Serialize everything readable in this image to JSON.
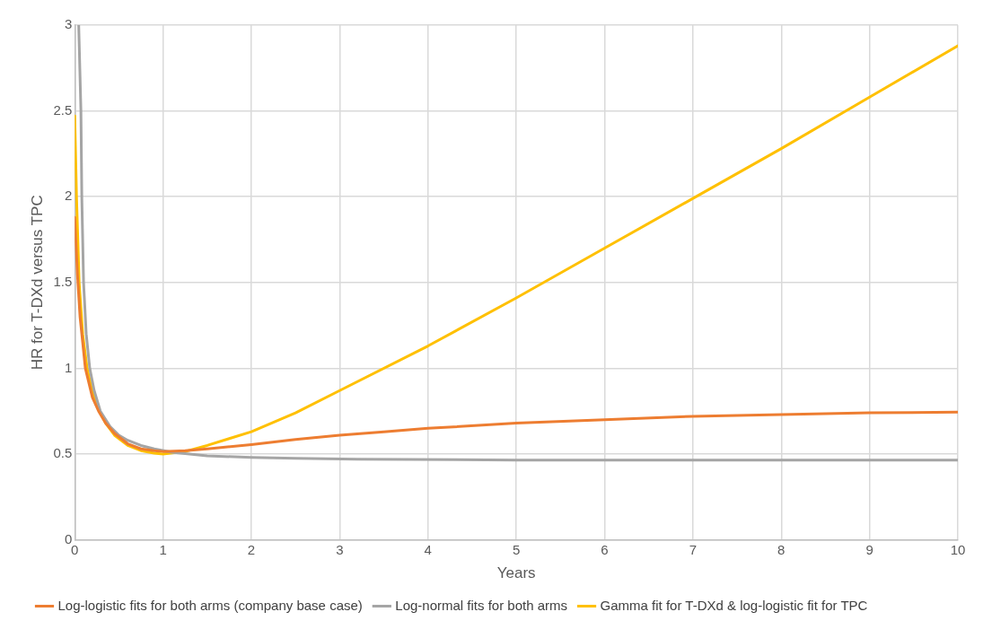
{
  "chart_data": {
    "type": "line",
    "xlabel": "Years",
    "ylabel": "HR for T-DXd versus TPC",
    "xlim": [
      0,
      10
    ],
    "ylim": [
      0,
      3
    ],
    "xticks": [
      0,
      1,
      2,
      3,
      4,
      5,
      6,
      7,
      8,
      9,
      10
    ],
    "yticks": [
      0,
      0.5,
      1,
      1.5,
      2,
      2.5,
      3
    ],
    "grid": true,
    "legend": "bottom",
    "marker": "none",
    "line_style": "solid",
    "series": [
      {
        "name": "Log-logistic fits for both arms (company base case)",
        "color": "#ed7d31",
        "x": [
          0,
          0.03,
          0.06,
          0.12,
          0.2,
          0.27,
          0.35,
          0.45,
          0.6,
          0.75,
          0.9,
          1,
          1.25,
          1.5,
          2,
          2.5,
          3,
          3.5,
          4,
          5,
          6,
          7,
          8,
          9,
          10
        ],
        "values": [
          1.88,
          1.55,
          1.3,
          1.0,
          0.83,
          0.75,
          0.68,
          0.62,
          0.56,
          0.53,
          0.52,
          0.515,
          0.52,
          0.53,
          0.555,
          0.585,
          0.61,
          0.63,
          0.65,
          0.68,
          0.7,
          0.72,
          0.73,
          0.74,
          0.745
        ]
      },
      {
        "name": "Log-normal fits for both arms",
        "color": "#a5a5a5",
        "x": [
          0.045,
          0.06,
          0.07,
          0.08,
          0.1,
          0.13,
          0.17,
          0.22,
          0.29,
          0.4,
          0.5,
          0.6,
          0.75,
          0.9,
          1.1,
          1.5,
          2,
          2.5,
          3.2,
          5,
          7,
          10
        ],
        "values": [
          3,
          2.7,
          2.5,
          2.0,
          1.5,
          1.2,
          1.0,
          0.87,
          0.75,
          0.66,
          0.61,
          0.58,
          0.55,
          0.53,
          0.51,
          0.49,
          0.48,
          0.475,
          0.47,
          0.465,
          0.465,
          0.465
        ]
      },
      {
        "name": "Gamma fit for T-DXd & log-logistic fit for TPC",
        "color": "#ffc000",
        "x": [
          0,
          0.02,
          0.05,
          0.09,
          0.14,
          0.2,
          0.28,
          0.35,
          0.45,
          0.6,
          0.75,
          0.9,
          1,
          1.25,
          1.5,
          1.75,
          2,
          2.5,
          3,
          4,
          5,
          6,
          7,
          8,
          9,
          10
        ],
        "values": [
          2.47,
          2.0,
          1.5,
          1.2,
          1.0,
          0.86,
          0.75,
          0.68,
          0.61,
          0.55,
          0.52,
          0.505,
          0.5,
          0.515,
          0.55,
          0.59,
          0.63,
          0.74,
          0.87,
          1.13,
          1.41,
          1.7,
          1.99,
          2.28,
          2.58,
          2.88
        ]
      }
    ]
  }
}
